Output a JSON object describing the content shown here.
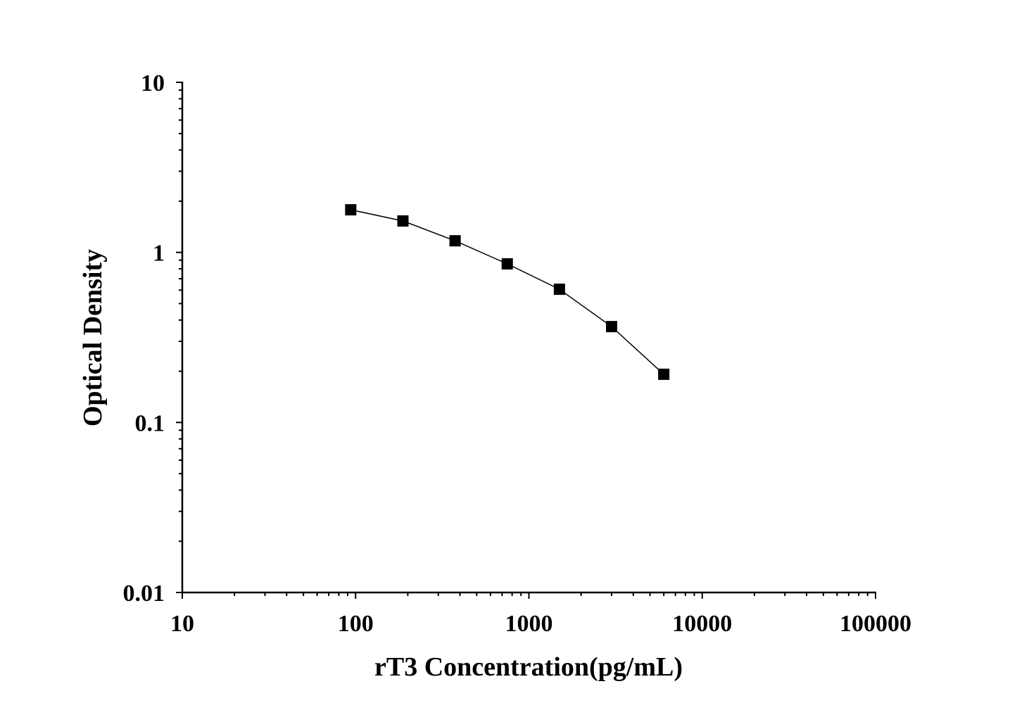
{
  "chart_data": {
    "type": "line",
    "title": "",
    "xlabel": "rT3 Concentration(pg/mL)",
    "ylabel": "Optical Density",
    "x_scale": "log",
    "y_scale": "log",
    "xlim": [
      10,
      100000
    ],
    "ylim": [
      0.01,
      10
    ],
    "x_ticks": [
      "10",
      "100",
      "1000",
      "10000",
      "100000"
    ],
    "y_ticks": [
      "0.01",
      "0.1",
      "1",
      "10"
    ],
    "grid": false,
    "legend": "none",
    "marker": "square",
    "color": "#000000",
    "series": [
      {
        "x": [
          93.75,
          187.5,
          375,
          750,
          1500,
          3000,
          6000
        ],
        "y": [
          1.78,
          1.53,
          1.17,
          0.856,
          0.607,
          0.366,
          0.192
        ]
      }
    ]
  }
}
